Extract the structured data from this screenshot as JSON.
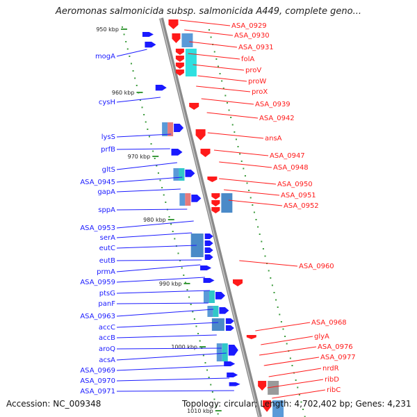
{
  "title": "Aeromonas salmonicida subsp. salmonicida A449, complete geno...",
  "footer": {
    "accession_label": "Accession: NC_009348",
    "topology_label": "Topology: circular; Length: 4,702,402 bp; Genes: 4,231"
  },
  "colors": {
    "forward": "#1a1aff",
    "reverse": "#ff1a1a",
    "backbone": "#8a8a8a",
    "tick_dot": "#3a9a3a"
  },
  "ticks": [
    "950 kbp",
    "960 kbp",
    "970 kbp",
    "980 kbp",
    "990 kbp",
    "1000 kbp",
    "1010 kbp"
  ],
  "forward_genes": [
    "mogA",
    "cysH",
    "lysS",
    "prfB",
    "gltS",
    "ASA_0945",
    "gapA",
    "sppA",
    "ASA_0953",
    "serA",
    "eutC",
    "eutB",
    "prmA",
    "ASA_0959",
    "ptsG",
    "panF",
    "ASA_0963",
    "accC",
    "accB",
    "aroQ",
    "acsA",
    "ASA_0969",
    "ASA_0970",
    "ASA_0971"
  ],
  "reverse_genes": [
    "ASA_0929",
    "ASA_0930",
    "ASA_0931",
    "folA",
    "proV",
    "proW",
    "proX",
    "ASA_0939",
    "ASA_0942",
    "ansA",
    "ASA_0947",
    "ASA_0948",
    "ASA_0950",
    "ASA_0951",
    "ASA_0952",
    "ASA_0960",
    "ASA_0968",
    "glyA",
    "ASA_0976",
    "ASA_0977",
    "nrdR",
    "ribD",
    "ribC"
  ]
}
